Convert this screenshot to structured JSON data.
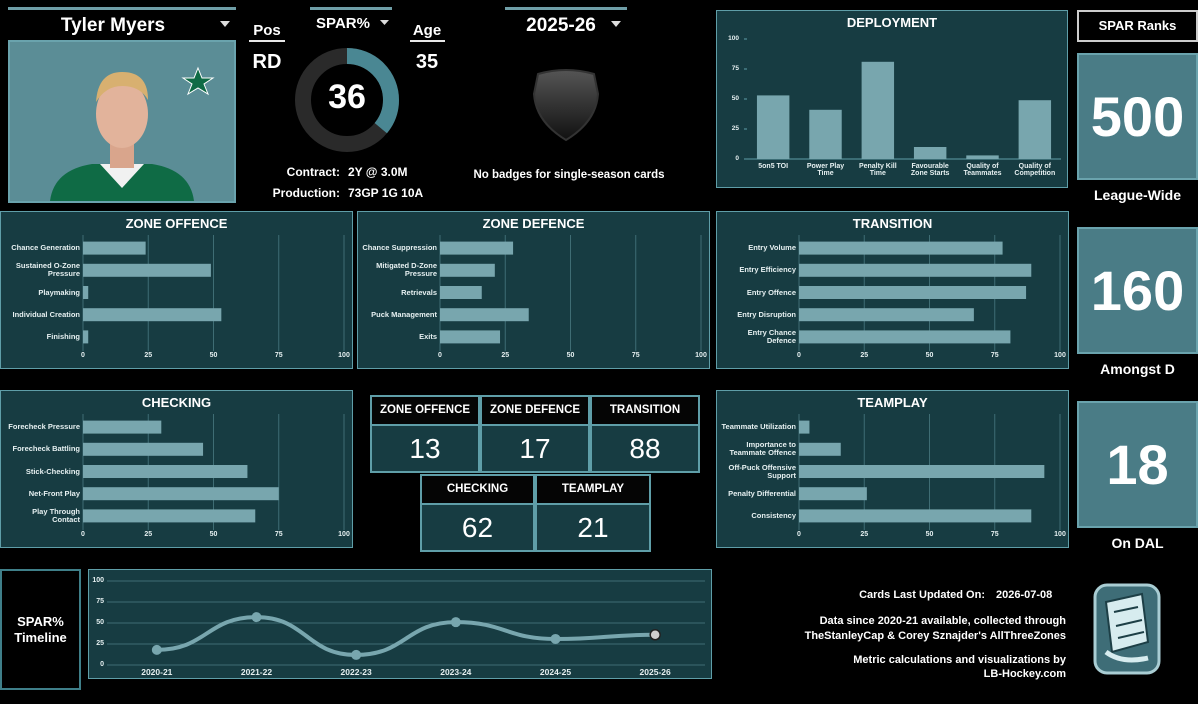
{
  "player": {
    "name": "Tyler Myers",
    "pos_label": "Pos",
    "pos": "RD",
    "age_label": "Age",
    "age": 35,
    "contract_label": "Contract:",
    "contract": "2Y @ 3.0M",
    "production_label": "Production:",
    "production": "73GP 1G 10A"
  },
  "spar": {
    "label": "SPAR%",
    "value": 36
  },
  "season": "2025-26",
  "badges_note": "No badges for single-season cards",
  "ranks": {
    "title": "SPAR Ranks",
    "items": [
      {
        "value": 500,
        "label": "League-Wide"
      },
      {
        "value": 160,
        "label": "Amongst D"
      },
      {
        "value": 18,
        "label": "On DAL"
      }
    ]
  },
  "scores": [
    {
      "label": "ZONE OFFENCE",
      "value": 13
    },
    {
      "label": "ZONE DEFENCE",
      "value": 17
    },
    {
      "label": "TRANSITION",
      "value": 88
    },
    {
      "label": "CHECKING",
      "value": 62
    },
    {
      "label": "TEAMPLAY",
      "value": 21
    }
  ],
  "footer": {
    "updated_label": "Cards Last Updated On:",
    "updated": "2026-07-08",
    "data_lines": [
      "Data since 2020-21 available, collected through",
      "TheStanleyCap & Corey Sznajder's AllThreeZones"
    ],
    "credit_lines": [
      "Metric calculations and visualizations by",
      "LB-Hockey.com"
    ]
  },
  "chart_data": [
    {
      "type": "bar",
      "title": "DEPLOYMENT",
      "categories": [
        "5on5 TOI",
        "Power Play Time",
        "Penalty Kill Time",
        "Favourable Zone Starts",
        "Quality of Teammates",
        "Quality of Competition"
      ],
      "values": [
        53,
        41,
        81,
        10,
        3,
        49
      ],
      "color": "#78a6ae",
      "ylim": [
        0,
        100
      ],
      "yticks": [
        0,
        25,
        50,
        75,
        100
      ],
      "grid": false
    },
    {
      "type": "barh",
      "title": "ZONE OFFENCE",
      "categories": [
        "Chance Generation",
        "Sustained O-Zone Pressure",
        "Playmaking",
        "Individual Creation",
        "Finishing"
      ],
      "values": [
        24,
        49,
        2,
        53,
        2
      ],
      "color": "#78a6ae",
      "xlim": [
        0,
        100
      ],
      "xticks": [
        0,
        25,
        50,
        75,
        100
      ],
      "grid": true
    },
    {
      "type": "barh",
      "title": "ZONE DEFENCE",
      "categories": [
        "Chance Suppression",
        "Mitigated D-Zone Pressure",
        "Retrievals",
        "Puck Management",
        "Exits"
      ],
      "values": [
        28,
        21,
        16,
        34,
        23
      ],
      "color": "#78a6ae",
      "xlim": [
        0,
        100
      ],
      "xticks": [
        0,
        25,
        50,
        75,
        100
      ],
      "grid": true
    },
    {
      "type": "barh",
      "title": "TRANSITION",
      "categories": [
        "Entry Volume",
        "Entry Efficiency",
        "Entry Offence",
        "Entry Disruption",
        "Entry Chance Defence"
      ],
      "values": [
        78,
        89,
        87,
        67,
        81
      ],
      "color": "#78a6ae",
      "xlim": [
        0,
        100
      ],
      "xticks": [
        0,
        25,
        50,
        75,
        100
      ],
      "grid": true
    },
    {
      "type": "barh",
      "title": "CHECKING",
      "categories": [
        "Forecheck Pressure",
        "Forecheck Battling",
        "Stick-Checking",
        "Net-Front Play",
        "Play Through Contact"
      ],
      "values": [
        30,
        46,
        63,
        75,
        66
      ],
      "color": "#78a6ae",
      "xlim": [
        0,
        100
      ],
      "xticks": [
        0,
        25,
        50,
        75,
        100
      ],
      "grid": true
    },
    {
      "type": "barh",
      "title": "TEAMPLAY",
      "categories": [
        "Teammate Utilization",
        "Importance to Teammate Offence",
        "Off-Puck Offensive Support",
        "Penalty Differential",
        "Consistency"
      ],
      "values": [
        4,
        16,
        94,
        26,
        89
      ],
      "color": "#78a6ae",
      "xlim": [
        0,
        100
      ],
      "xticks": [
        0,
        25,
        50,
        75,
        100
      ],
      "grid": true
    },
    {
      "type": "line",
      "title": "SPAR% Timeline",
      "categories": [
        "2020-21",
        "2021-22",
        "2022-23",
        "2023-24",
        "2024-25",
        "2025-26"
      ],
      "values": [
        18,
        57,
        12,
        51,
        31,
        36
      ],
      "color": "#78a6ae",
      "ylim": [
        0,
        100
      ],
      "yticks": [
        0,
        25,
        50,
        75,
        100
      ],
      "grid": true
    }
  ]
}
